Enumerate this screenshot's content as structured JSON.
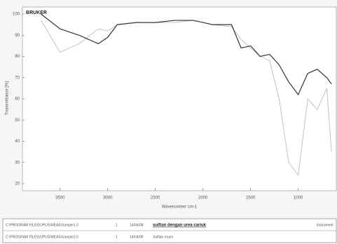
{
  "chart_data": {
    "type": "line",
    "logo": "BRUKER",
    "xlabel": "Wavenumber cm-1",
    "ylabel": "Transmittance [%]",
    "x": [
      3700,
      3500,
      3300,
      3100,
      3000,
      2900,
      2700,
      2500,
      2300,
      2100,
      2000,
      1900,
      1700,
      1600,
      1500,
      1400,
      1300,
      1200,
      1100,
      1000,
      900,
      800,
      700,
      650
    ],
    "series": [
      {
        "name": "Sample1",
        "color": "#333333",
        "values": [
          100,
          93,
          90,
          86,
          89,
          95,
          96,
          96,
          97,
          97,
          96,
          95,
          95,
          84,
          85,
          80,
          81,
          76,
          68,
          62,
          72,
          74,
          70,
          67
        ]
      },
      {
        "name": "Sample2",
        "color": "#bbbbbb",
        "values": [
          97,
          82,
          86,
          93,
          92,
          95,
          96,
          96,
          96,
          97,
          96,
          95,
          94,
          88,
          84,
          80,
          78,
          60,
          30,
          24,
          60,
          55,
          65,
          35
        ]
      }
    ],
    "xlim": [
      3800,
      600
    ],
    "xticks": [
      3500,
      3000,
      2500,
      2000,
      1500,
      1000
    ],
    "ylim": [
      20,
      100
    ],
    "yticks": [
      20,
      30,
      40,
      50,
      60,
      70,
      80,
      90,
      100
    ],
    "grid": false
  },
  "table": {
    "rows": [
      [
        "C:\\PROGRAM FILES\\OPUS\\MEAS\\Sample1.0",
        "1",
        "14/04/08",
        "sulfian dengan urea cariuk",
        "Instrument"
      ],
      [
        "C:\\PROGRAM FILES\\OPUS\\MEAS\\Sample2.0",
        "1",
        "14/04/08",
        "Sulfian murni"
      ]
    ]
  }
}
